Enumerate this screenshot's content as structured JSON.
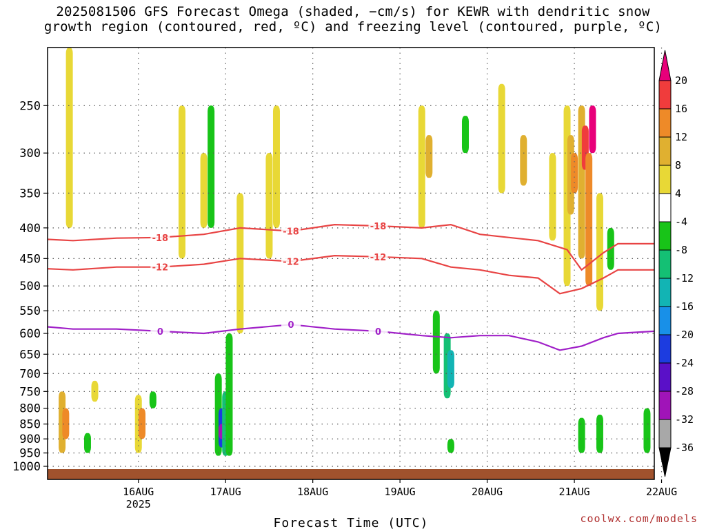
{
  "title_line1": "2025081506 GFS Forecast Omega (shaded, −cm/s) for KEWR with dendritic snow",
  "title_line2": "growth region (contoured, red, ºC) and freezing level (contoured, purple, ºC)",
  "credit": "coolwx.com/models",
  "chart_data": {
    "type": "heatmap",
    "xlabel": "Forecast Time (UTC)",
    "x_ticks": [
      "16AUG",
      "17AUG",
      "18AUG",
      "19AUG",
      "20AUG",
      "21AUG",
      "22AUG"
    ],
    "x_tick_sublabel": "2025",
    "x_range_hours_from_init": [
      -7,
      160
    ],
    "y_ticks": [
      250,
      300,
      350,
      400,
      450,
      500,
      550,
      600,
      650,
      700,
      750,
      800,
      850,
      900,
      950,
      1000
    ],
    "y_range_hpa": [
      200,
      1000
    ],
    "colorbar": {
      "labels": [
        20,
        16,
        12,
        8,
        4,
        -4,
        -8,
        -12,
        -16,
        -20,
        -24,
        -28,
        -32,
        -36
      ],
      "colors": [
        "#e8007a",
        "#f03c3c",
        "#ee8a28",
        "#e0b030",
        "#e8d836",
        "#ffffff",
        "#18c418",
        "#14c074",
        "#12b4b4",
        "#1890e8",
        "#1c3ce0",
        "#5a10c8",
        "#a014b8",
        "#a8a8a8",
        "#000000"
      ],
      "top_color": "#e8007a",
      "bottom_color": "#000000"
    },
    "contours": [
      {
        "label": "-18",
        "color": "#e84444",
        "points": [
          [
            -7,
            418
          ],
          [
            0,
            420
          ],
          [
            12,
            416
          ],
          [
            24,
            415
          ],
          [
            36,
            410
          ],
          [
            46,
            400
          ],
          [
            60,
            405
          ],
          [
            72,
            395
          ],
          [
            84,
            397
          ],
          [
            96,
            400
          ],
          [
            104,
            395
          ],
          [
            112,
            410
          ],
          [
            120,
            415
          ],
          [
            128,
            420
          ],
          [
            136,
            435
          ],
          [
            140,
            470
          ],
          [
            146,
            440
          ],
          [
            150,
            425
          ],
          [
            160,
            425
          ]
        ]
      },
      {
        "label": "-12",
        "color": "#e84444",
        "points": [
          [
            -7,
            468
          ],
          [
            0,
            470
          ],
          [
            12,
            465
          ],
          [
            24,
            465
          ],
          [
            36,
            460
          ],
          [
            46,
            450
          ],
          [
            60,
            455
          ],
          [
            72,
            445
          ],
          [
            84,
            447
          ],
          [
            96,
            450
          ],
          [
            104,
            465
          ],
          [
            112,
            470
          ],
          [
            120,
            480
          ],
          [
            128,
            485
          ],
          [
            134,
            515
          ],
          [
            140,
            505
          ],
          [
            146,
            485
          ],
          [
            150,
            470
          ],
          [
            160,
            470
          ]
        ]
      },
      {
        "label": "0",
        "color": "#a020c8",
        "points": [
          [
            -7,
            585
          ],
          [
            0,
            590
          ],
          [
            12,
            590
          ],
          [
            24,
            595
          ],
          [
            36,
            600
          ],
          [
            46,
            590
          ],
          [
            60,
            580
          ],
          [
            72,
            590
          ],
          [
            84,
            595
          ],
          [
            96,
            605
          ],
          [
            104,
            610
          ],
          [
            112,
            605
          ],
          [
            120,
            605
          ],
          [
            128,
            620
          ],
          [
            134,
            640
          ],
          [
            140,
            630
          ],
          [
            146,
            610
          ],
          [
            150,
            600
          ],
          [
            160,
            595
          ]
        ]
      }
    ],
    "omega_cells": [
      {
        "t": -3,
        "p": [
          750,
          950
        ],
        "v": 8
      },
      {
        "t": -2,
        "p": [
          800,
          900
        ],
        "v": 12
      },
      {
        "t": -1,
        "p": [
          200,
          400
        ],
        "v": 4
      },
      {
        "t": 4,
        "p": [
          880,
          950
        ],
        "v": -6
      },
      {
        "t": 6,
        "p": [
          720,
          780
        ],
        "v": 4
      },
      {
        "t": 18,
        "p": [
          760,
          950
        ],
        "v": 4
      },
      {
        "t": 19,
        "p": [
          800,
          900
        ],
        "v": 12
      },
      {
        "t": 22,
        "p": [
          750,
          800
        ],
        "v": -6
      },
      {
        "t": 30,
        "p": [
          250,
          450
        ],
        "v": 4
      },
      {
        "t": 36,
        "p": [
          300,
          400
        ],
        "v": 4
      },
      {
        "t": 38,
        "p": [
          250,
          400
        ],
        "v": -6
      },
      {
        "t": 40,
        "p": [
          700,
          960
        ],
        "v": -8
      },
      {
        "t": 41,
        "p": [
          800,
          930
        ],
        "v": -24
      },
      {
        "t": 41,
        "p": [
          850,
          900
        ],
        "v": -32
      },
      {
        "t": 42,
        "p": [
          750,
          960
        ],
        "v": -12
      },
      {
        "t": 43,
        "p": [
          600,
          960
        ],
        "v": -6
      },
      {
        "t": 46,
        "p": [
          350,
          600
        ],
        "v": 4
      },
      {
        "t": 54,
        "p": [
          300,
          450
        ],
        "v": 4
      },
      {
        "t": 56,
        "p": [
          250,
          400
        ],
        "v": 4
      },
      {
        "t": 96,
        "p": [
          250,
          400
        ],
        "v": 4
      },
      {
        "t": 98,
        "p": [
          280,
          330
        ],
        "v": 8
      },
      {
        "t": 100,
        "p": [
          550,
          700
        ],
        "v": -6
      },
      {
        "t": 103,
        "p": [
          600,
          770
        ],
        "v": -12
      },
      {
        "t": 104,
        "p": [
          640,
          740
        ],
        "v": -16
      },
      {
        "t": 104,
        "p": [
          900,
          950
        ],
        "v": -6
      },
      {
        "t": 108,
        "p": [
          260,
          300
        ],
        "v": -6
      },
      {
        "t": 118,
        "p": [
          230,
          350
        ],
        "v": 4
      },
      {
        "t": 124,
        "p": [
          280,
          340
        ],
        "v": 8
      },
      {
        "t": 132,
        "p": [
          300,
          420
        ],
        "v": 4
      },
      {
        "t": 136,
        "p": [
          250,
          500
        ],
        "v": 4
      },
      {
        "t": 137,
        "p": [
          280,
          380
        ],
        "v": 8
      },
      {
        "t": 138,
        "p": [
          300,
          350
        ],
        "v": 12
      },
      {
        "t": 140,
        "p": [
          250,
          450
        ],
        "v": 8
      },
      {
        "t": 141,
        "p": [
          270,
          320
        ],
        "v": 16
      },
      {
        "t": 142,
        "p": [
          300,
          500
        ],
        "v": 12
      },
      {
        "t": 143,
        "p": [
          250,
          300
        ],
        "v": 20
      },
      {
        "t": 145,
        "p": [
          350,
          550
        ],
        "v": 4
      },
      {
        "t": 148,
        "p": [
          400,
          470
        ],
        "v": -6
      },
      {
        "t": 140,
        "p": [
          830,
          950
        ],
        "v": -6
      },
      {
        "t": 145,
        "p": [
          820,
          950
        ],
        "v": -6
      },
      {
        "t": 158,
        "p": [
          800,
          950
        ],
        "v": -6
      }
    ]
  }
}
